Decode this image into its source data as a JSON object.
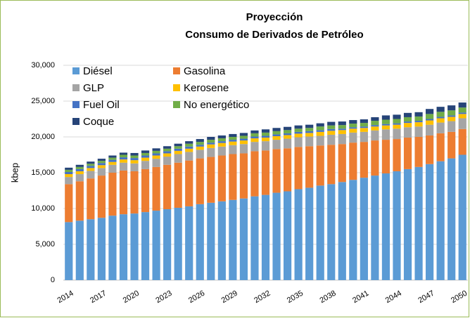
{
  "chart_data": {
    "type": "stacked_bar",
    "title": [
      "Proyección",
      "Consumo de Derivados de Petróleo"
    ],
    "y_label": "kbep",
    "categories": [
      "2014",
      null,
      null,
      "2017",
      null,
      null,
      "2020",
      null,
      null,
      "2023",
      null,
      null,
      "2026",
      null,
      null,
      "2029",
      null,
      null,
      "2032",
      null,
      null,
      "2035",
      null,
      null,
      "2038",
      null,
      null,
      "2041",
      null,
      null,
      "2044",
      null,
      null,
      "2047",
      null,
      null,
      "2050"
    ],
    "ylim": [
      0,
      30000
    ],
    "yticks": [
      0,
      {
        "value": 5000,
        "label": "5,000"
      },
      {
        "value": 10000,
        "label": "10,000"
      },
      {
        "value": 15000,
        "label": "15,000"
      },
      {
        "value": 20000,
        "label": "20,000"
      },
      {
        "value": 25000,
        "label": "25,000"
      },
      {
        "value": 30000,
        "label": "30,000"
      }
    ],
    "grid": true,
    "legend": "top-left",
    "series": [
      {
        "name": "Diésel",
        "color": "#5b9bd5",
        "values": [
          8100,
          8300,
          8500,
          8700,
          9000,
          9200,
          9300,
          9500,
          9700,
          9900,
          10100,
          10300,
          10600,
          10800,
          11000,
          11200,
          11400,
          11700,
          11900,
          12200,
          12400,
          12700,
          12900,
          13200,
          13400,
          13700,
          14000,
          14300,
          14600,
          14900,
          15200,
          15500,
          15800,
          16200,
          16600,
          17000,
          17500
        ]
      },
      {
        "name": "Gasolina",
        "color": "#ed7d31",
        "values": [
          5300,
          5500,
          5700,
          5900,
          6000,
          6100,
          5900,
          6000,
          6100,
          6200,
          6300,
          6400,
          6400,
          6400,
          6400,
          6400,
          6300,
          6300,
          6200,
          6100,
          6000,
          5900,
          5800,
          5600,
          5500,
          5300,
          5200,
          5000,
          4900,
          4700,
          4500,
          4400,
          4200,
          4000,
          3900,
          3700,
          3600
        ]
      },
      {
        "name": "GLP",
        "color": "#a5a5a5",
        "values": [
          1000,
          1000,
          1050,
          1050,
          1100,
          1100,
          1100,
          1150,
          1150,
          1150,
          1200,
          1200,
          1200,
          1250,
          1250,
          1250,
          1300,
          1300,
          1300,
          1300,
          1350,
          1350,
          1350,
          1350,
          1400,
          1400,
          1400,
          1400,
          1400,
          1450,
          1450,
          1450,
          1450,
          1500,
          1500,
          1500,
          1500
        ]
      },
      {
        "name": "Kerosene",
        "color": "#ffc000",
        "values": [
          400,
          400,
          400,
          400,
          400,
          450,
          450,
          450,
          450,
          450,
          450,
          450,
          450,
          500,
          500,
          500,
          500,
          500,
          500,
          500,
          500,
          500,
          500,
          550,
          550,
          550,
          550,
          550,
          550,
          550,
          550,
          600,
          600,
          600,
          600,
          600,
          600
        ]
      },
      {
        "name": "Fuel Oil",
        "color": "#4472c4",
        "values": [
          300,
          300,
          300,
          300,
          300,
          300,
          300,
          300,
          300,
          300,
          300,
          300,
          250,
          250,
          250,
          250,
          250,
          250,
          250,
          250,
          250,
          250,
          250,
          250,
          250,
          200,
          200,
          200,
          200,
          200,
          200,
          200,
          200,
          200,
          200,
          200,
          200
        ]
      },
      {
        "name": "No energético",
        "color": "#70ad47",
        "values": [
          300,
          300,
          300,
          300,
          300,
          350,
          350,
          350,
          350,
          350,
          350,
          400,
          400,
          400,
          400,
          400,
          400,
          450,
          450,
          450,
          450,
          450,
          450,
          500,
          500,
          500,
          500,
          500,
          600,
          600,
          600,
          600,
          600,
          700,
          700,
          700,
          700
        ]
      },
      {
        "name": "Coque",
        "color": "#264478",
        "values": [
          300,
          300,
          300,
          300,
          300,
          300,
          350,
          350,
          350,
          350,
          350,
          350,
          400,
          400,
          400,
          400,
          400,
          400,
          450,
          450,
          450,
          450,
          450,
          450,
          500,
          500,
          500,
          500,
          500,
          600,
          600,
          600,
          600,
          700,
          700,
          700,
          700
        ]
      }
    ]
  }
}
